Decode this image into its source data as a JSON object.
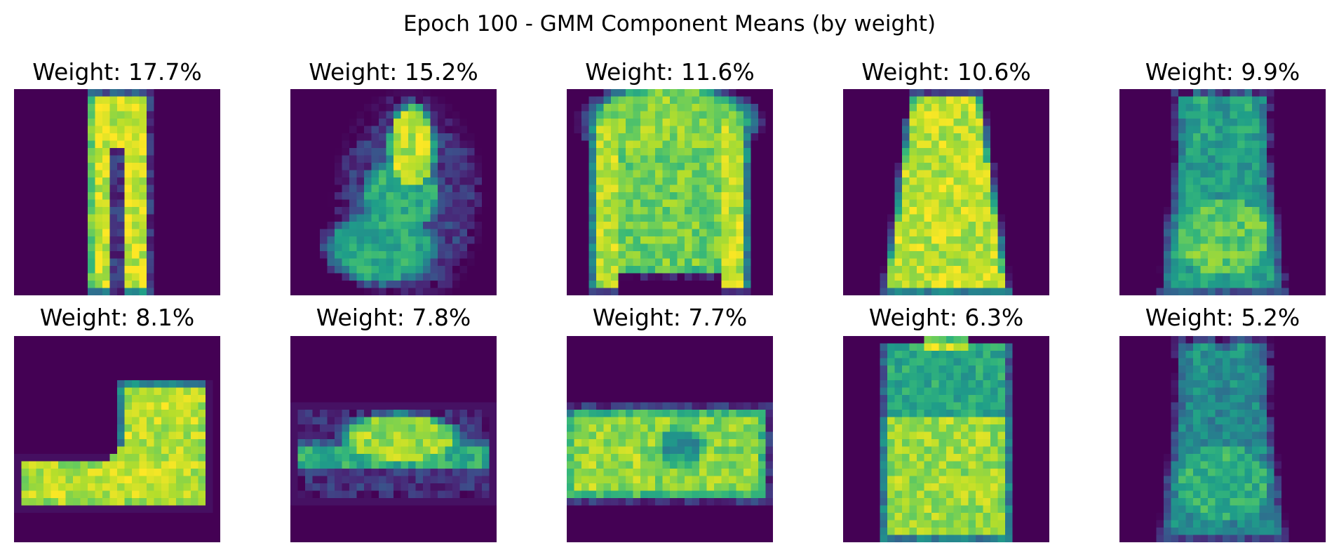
{
  "chart_data": {
    "type": "heatmap",
    "title": "Epoch 100 - GMM Component Means (by weight)",
    "colormap": "viridis",
    "grid": false,
    "axes_visible": false,
    "layout": {
      "rows": 2,
      "cols": 5
    },
    "panels": [
      {
        "title": "Weight: 17.7%",
        "weight_percent": 17.7,
        "depicts": "trouser"
      },
      {
        "title": "Weight: 15.2%",
        "weight_percent": 15.2,
        "depicts": "bag"
      },
      {
        "title": "Weight: 11.6%",
        "weight_percent": 11.6,
        "depicts": "pullover"
      },
      {
        "title": "Weight: 10.6%",
        "weight_percent": 10.6,
        "depicts": "dress"
      },
      {
        "title": "Weight: 9.9%",
        "weight_percent": 9.9,
        "depicts": "top"
      },
      {
        "title": "Weight: 8.1%",
        "weight_percent": 8.1,
        "depicts": "ankle-boot"
      },
      {
        "title": "Weight: 7.8%",
        "weight_percent": 7.8,
        "depicts": "sandal"
      },
      {
        "title": "Weight: 7.7%",
        "weight_percent": 7.7,
        "depicts": "sneaker"
      },
      {
        "title": "Weight: 6.3%",
        "weight_percent": 6.3,
        "depicts": "shirt"
      },
      {
        "title": "Weight: 5.2%",
        "weight_percent": 5.2,
        "depicts": "top"
      }
    ]
  }
}
